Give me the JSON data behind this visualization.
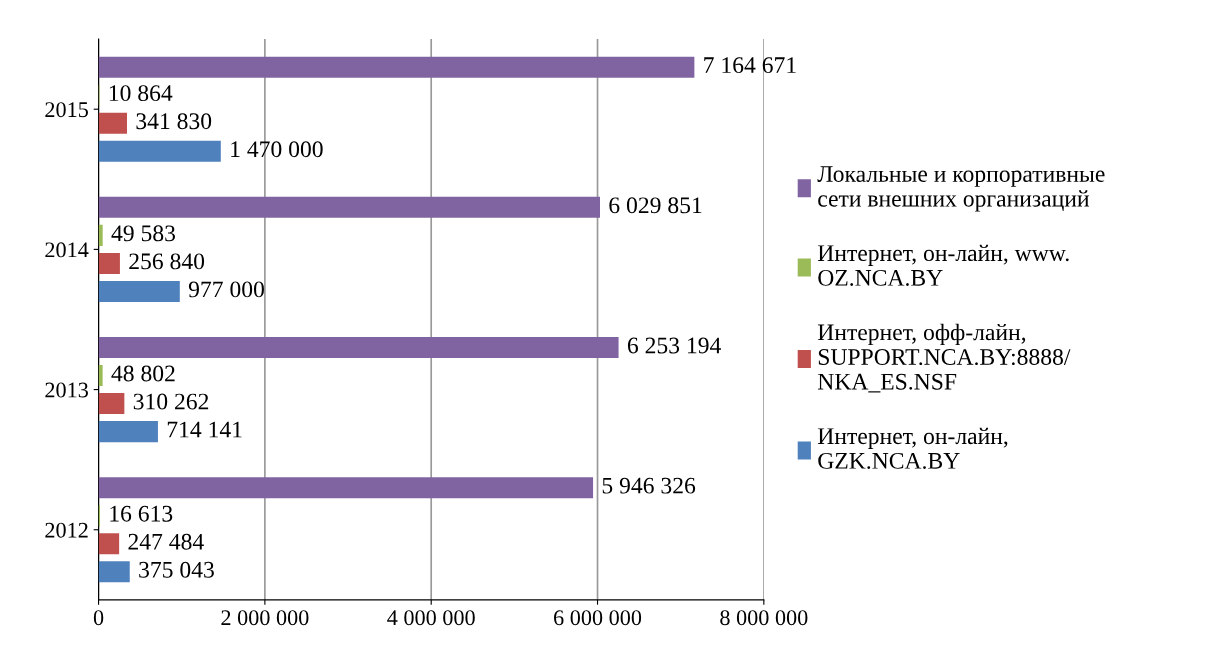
{
  "chart_data": {
    "type": "bar",
    "orientation": "horizontal",
    "categories": [
      "2015",
      "2014",
      "2013",
      "2012"
    ],
    "series": [
      {
        "name": "Локальные и корпоративные\nсети внешних организаций",
        "color": "#8064a2",
        "values": [
          7164671,
          6029851,
          6253194,
          5946326
        ],
        "value_labels": [
          "7 164 671",
          "6 029 851",
          "6 253 194",
          "5 946 326"
        ]
      },
      {
        "name": "Интернет, он-лайн, www.\nOZ.NCA.BY",
        "color": "#9bbb59",
        "values": [
          10864,
          49583,
          48802,
          16613
        ],
        "value_labels": [
          "10 864",
          "49 583",
          "48 802",
          "16 613"
        ]
      },
      {
        "name": "Интернет, офф-лайн,\nSUPPORT.NCA.BY:8888/\nNKA_ES.NSF",
        "color": "#c0504d",
        "values": [
          341830,
          256840,
          310262,
          247484
        ],
        "value_labels": [
          "341 830",
          "256 840",
          "310 262",
          "247 484"
        ]
      },
      {
        "name": "Интернет, он-лайн,\nGZK.NCA.BY",
        "color": "#4f81bd",
        "values": [
          1470000,
          977000,
          714141,
          375043
        ],
        "value_labels": [
          "1 470 000",
          "977 000",
          "714 141",
          "375 043"
        ]
      }
    ],
    "xlim": [
      0,
      8000000
    ],
    "xticks": [
      0,
      {
        "value": 2000000,
        "label": "2 000 000"
      },
      {
        "value": 4000000,
        "label": "4 000 000"
      },
      {
        "value": 6000000,
        "label": "6 000 000"
      },
      {
        "value": 8000000,
        "label": "8 000 000"
      }
    ],
    "grid": "x",
    "legend": "right"
  }
}
